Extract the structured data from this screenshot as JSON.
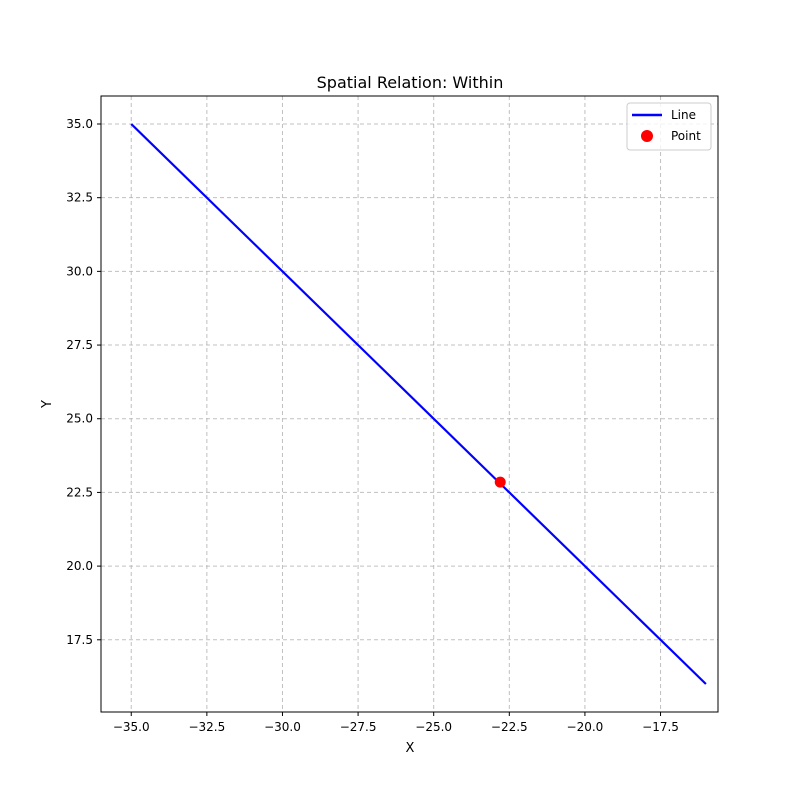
{
  "chart_data": {
    "type": "line",
    "title": "Spatial Relation: Within",
    "xlabel": "X",
    "ylabel": "Y",
    "xlim": [
      -36.0,
      -15.6
    ],
    "ylim": [
      15.05,
      35.95
    ],
    "xticks": [
      -35.0,
      -32.5,
      -30.0,
      -27.5,
      -25.0,
      -22.5,
      -20.0,
      -17.5
    ],
    "xtick_labels": [
      "−35.0",
      "−32.5",
      "−30.0",
      "−27.5",
      "−25.0",
      "−22.5",
      "−20.0",
      "−17.5"
    ],
    "yticks": [
      17.5,
      20.0,
      22.5,
      25.0,
      27.5,
      30.0,
      32.5,
      35.0
    ],
    "ytick_labels": [
      "17.5",
      "20.0",
      "22.5",
      "25.0",
      "27.5",
      "30.0",
      "32.5",
      "35.0"
    ],
    "grid": true,
    "legend_position": "top-right",
    "series": [
      {
        "name": "Line",
        "kind": "line",
        "color": "#0000ff",
        "x": [
          -35.0,
          -16.0
        ],
        "y": [
          35.0,
          16.0
        ]
      },
      {
        "name": "Point",
        "kind": "scatter",
        "color": "#ff0000",
        "x": [
          -22.8
        ],
        "y": [
          22.85
        ]
      }
    ]
  }
}
